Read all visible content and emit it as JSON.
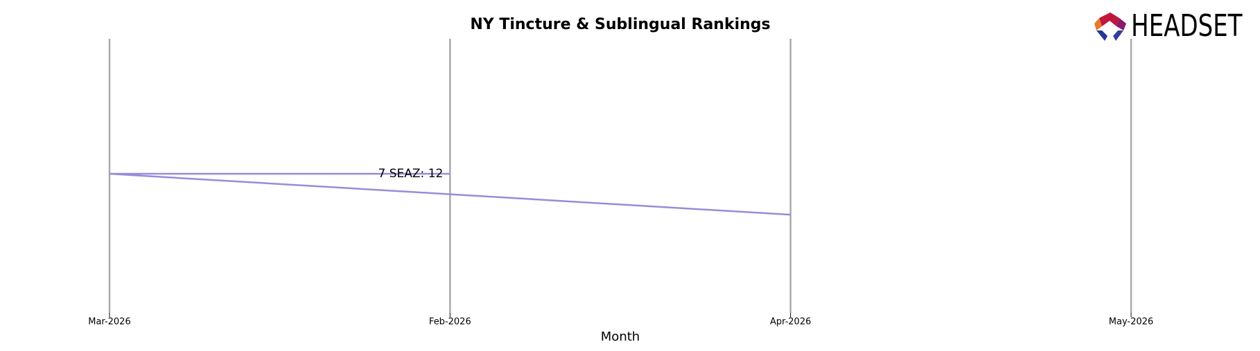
{
  "chart_data": {
    "type": "line",
    "title": "NY Tincture & Sublingual Rankings",
    "x_label": "Month",
    "categories": [
      "Mar-2026",
      "Feb-2026",
      "Apr-2026",
      "May-2026"
    ],
    "series": [
      {
        "name": "7 SEAZ",
        "color": "#9a8bd8",
        "label": "7 SEAZ: 12",
        "x": [
          "Feb-2026",
          "Mar-2026",
          "Apr-2026"
        ],
        "values": [
          12,
          12,
          13
        ]
      }
    ],
    "ylim": [
      8.7,
      15.4
    ],
    "invert_y": true,
    "grid": true,
    "logo": "HEADSET"
  }
}
